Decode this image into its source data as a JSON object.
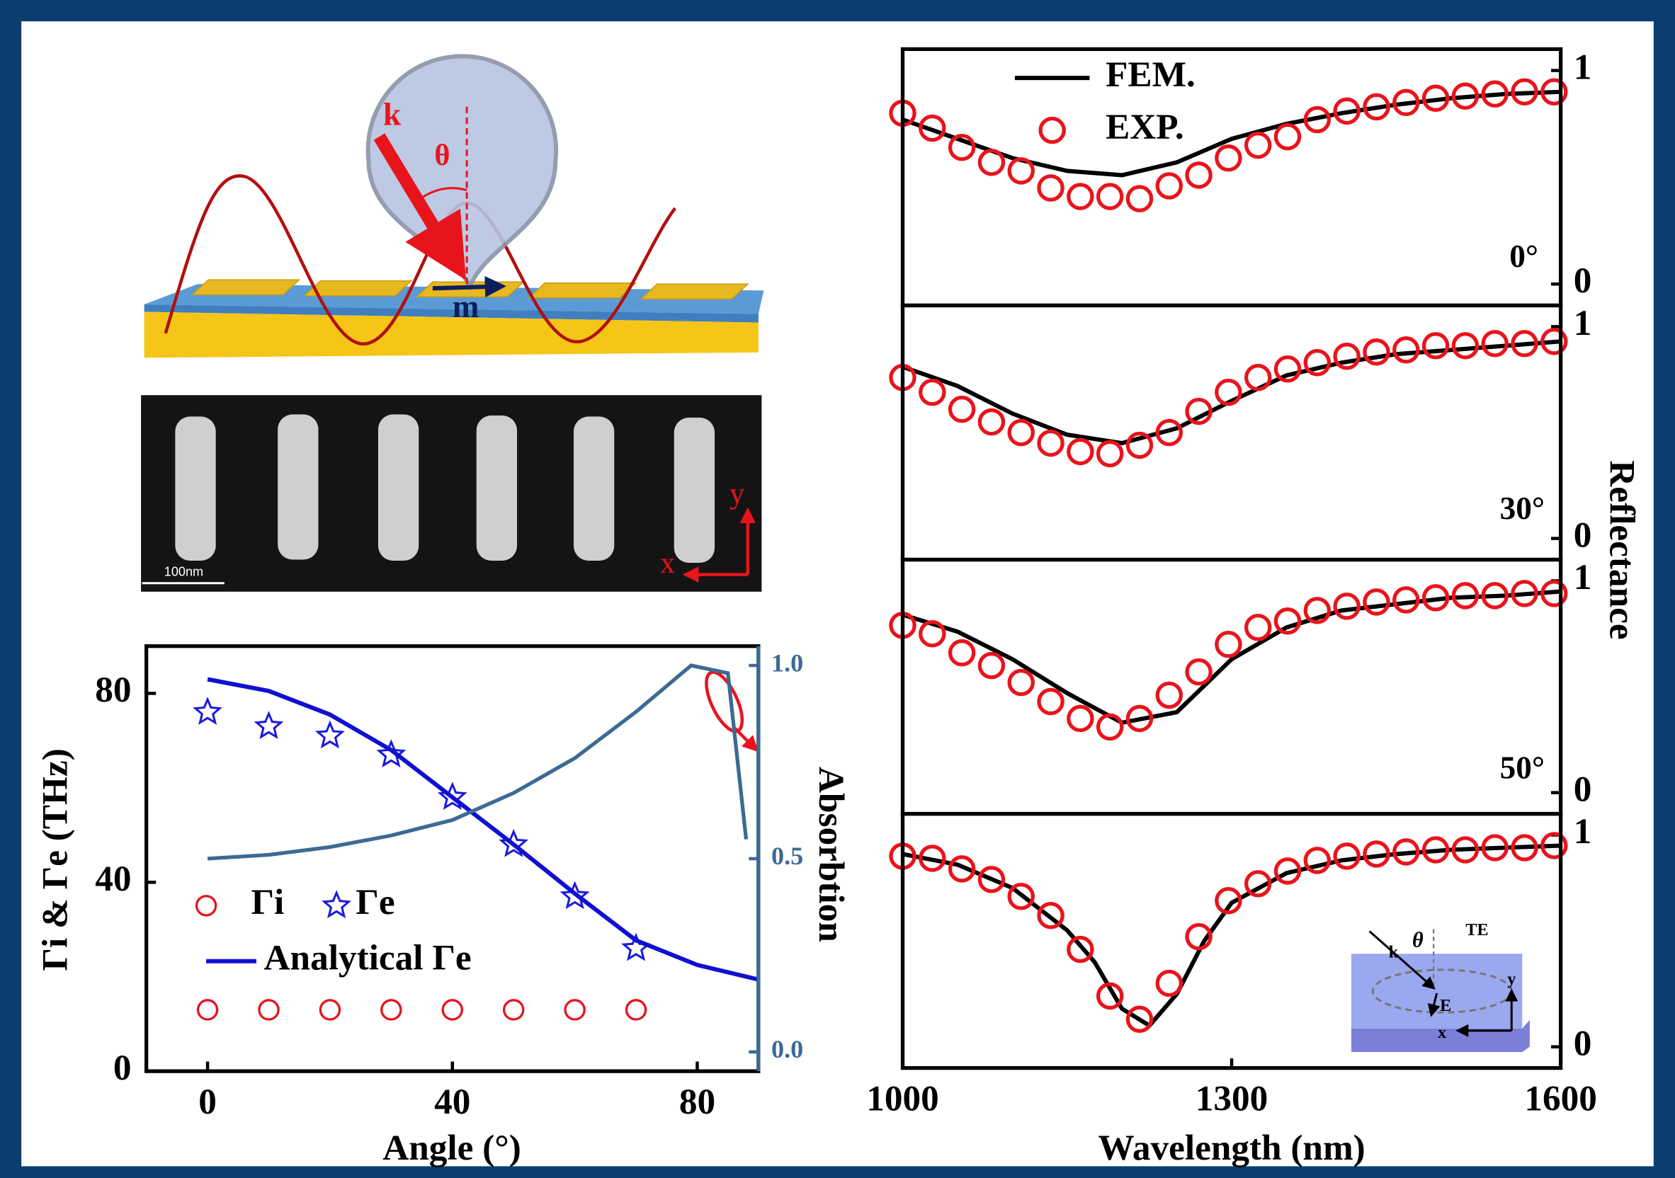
{
  "chart_data": [
    {
      "type": "scatter",
      "xlabel": "Angle (°)",
      "ylabel": "Γi & Γe (THz)",
      "y2label": "Absorbtion",
      "xlim": [
        -10,
        90
      ],
      "xticks": [
        0,
        40,
        80
      ],
      "ylim": [
        0,
        90
      ],
      "yticks": [
        0,
        40,
        80
      ],
      "y2lim": [
        -0.05,
        1.05
      ],
      "y2ticks": [
        {
          "value": 0,
          "label": "0.0"
        },
        {
          "value": 0.5,
          "label": "0.5"
        },
        {
          "value": 1,
          "label": "1.0"
        }
      ],
      "legend": true,
      "series": [
        {
          "name": "Γi",
          "type": "scatter",
          "marker": "circle",
          "color": "#e8141c",
          "x": [
            0,
            10,
            20,
            30,
            40,
            50,
            60,
            70
          ],
          "values": [
            13,
            13,
            13,
            13,
            13,
            13,
            13,
            13
          ]
        },
        {
          "name": "Γe",
          "type": "scatter",
          "marker": "star",
          "color": "#1a1adc",
          "x": [
            0,
            10,
            20,
            30,
            40,
            50,
            60,
            70
          ],
          "values": [
            76,
            73,
            71,
            67,
            58,
            48,
            37,
            26
          ]
        },
        {
          "name": "Analytical Γe",
          "type": "line",
          "color": "#1010d0",
          "x": [
            0,
            10,
            20,
            30,
            40,
            50,
            60,
            70,
            80,
            90
          ],
          "values": [
            83,
            80.5,
            75.5,
            68,
            58,
            48,
            37.6,
            27.7,
            22.5,
            19.4
          ]
        },
        {
          "type": "line",
          "axis": "y2",
          "color": "#3d6a94",
          "x": [
            0,
            10,
            20,
            30,
            40,
            50,
            60,
            70,
            79,
            85,
            88
          ],
          "values": [
            0.5,
            0.51,
            0.53,
            0.56,
            0.6,
            0.67,
            0.76,
            0.88,
            1.0,
            0.98,
            0.55
          ]
        }
      ]
    },
    {
      "type": "line",
      "annotation": "0°",
      "ylabel": "Reflectance",
      "xlim": [
        1000,
        1600
      ],
      "ylim": [
        -0.1,
        1.1
      ],
      "yticks": [
        0,
        1
      ],
      "legend": true,
      "series": [
        {
          "name": "FEM.",
          "type": "line",
          "color": "#000000",
          "x": [
            1000,
            1050,
            1100,
            1150,
            1200,
            1250,
            1300,
            1350,
            1400,
            1450,
            1500,
            1550,
            1600
          ],
          "values": [
            0.77,
            0.68,
            0.59,
            0.53,
            0.51,
            0.57,
            0.68,
            0.75,
            0.8,
            0.84,
            0.87,
            0.89,
            0.9
          ]
        },
        {
          "name": "EXP.",
          "type": "scatter",
          "marker": "circle",
          "color": "#e8141c",
          "x": [
            1000,
            1027,
            1054,
            1081,
            1108,
            1135,
            1162,
            1189,
            1216,
            1243,
            1270,
            1297,
            1324,
            1351,
            1378,
            1405,
            1432,
            1459,
            1486,
            1513,
            1540,
            1567,
            1594
          ],
          "values": [
            0.8,
            0.73,
            0.64,
            0.57,
            0.53,
            0.45,
            0.41,
            0.41,
            0.4,
            0.46,
            0.51,
            0.59,
            0.65,
            0.69,
            0.77,
            0.81,
            0.83,
            0.85,
            0.87,
            0.88,
            0.89,
            0.9,
            0.9
          ]
        }
      ]
    },
    {
      "type": "line",
      "annotation": "30°",
      "xlim": [
        1000,
        1600
      ],
      "ylim": [
        -0.1,
        1.1
      ],
      "yticks": [
        0,
        1
      ],
      "series": [
        {
          "type": "line",
          "color": "#000000",
          "x": [
            1000,
            1050,
            1100,
            1150,
            1200,
            1250,
            1300,
            1350,
            1400,
            1450,
            1500,
            1550,
            1600
          ],
          "values": [
            0.81,
            0.72,
            0.59,
            0.49,
            0.45,
            0.52,
            0.65,
            0.77,
            0.83,
            0.87,
            0.89,
            0.91,
            0.93
          ]
        },
        {
          "type": "scatter",
          "marker": "circle",
          "color": "#e8141c",
          "x": [
            1000,
            1027,
            1054,
            1081,
            1108,
            1135,
            1162,
            1189,
            1216,
            1243,
            1270,
            1297,
            1324,
            1351,
            1378,
            1405,
            1432,
            1459,
            1486,
            1513,
            1540,
            1567,
            1594
          ],
          "values": [
            0.76,
            0.69,
            0.61,
            0.55,
            0.5,
            0.45,
            0.41,
            0.4,
            0.44,
            0.5,
            0.6,
            0.69,
            0.76,
            0.8,
            0.83,
            0.86,
            0.88,
            0.89,
            0.91,
            0.91,
            0.92,
            0.92,
            0.93
          ]
        }
      ]
    },
    {
      "type": "line",
      "annotation": "50°",
      "xlim": [
        1000,
        1600
      ],
      "ylim": [
        -0.1,
        1.1
      ],
      "yticks": [
        0,
        1
      ],
      "series": [
        {
          "type": "line",
          "color": "#000000",
          "x": [
            1000,
            1050,
            1100,
            1150,
            1200,
            1250,
            1300,
            1350,
            1400,
            1450,
            1500,
            1550,
            1600
          ],
          "values": [
            0.84,
            0.76,
            0.63,
            0.47,
            0.33,
            0.38,
            0.63,
            0.78,
            0.86,
            0.89,
            0.92,
            0.93,
            0.95
          ]
        },
        {
          "type": "scatter",
          "marker": "circle",
          "color": "#e8141c",
          "x": [
            1000,
            1027,
            1054,
            1081,
            1108,
            1135,
            1162,
            1189,
            1216,
            1243,
            1270,
            1297,
            1324,
            1351,
            1378,
            1405,
            1432,
            1459,
            1486,
            1513,
            1540,
            1567,
            1594
          ],
          "values": [
            0.79,
            0.75,
            0.66,
            0.6,
            0.52,
            0.43,
            0.35,
            0.31,
            0.35,
            0.46,
            0.57,
            0.7,
            0.78,
            0.81,
            0.86,
            0.88,
            0.9,
            0.91,
            0.92,
            0.93,
            0.93,
            0.94,
            0.94
          ]
        }
      ]
    },
    {
      "type": "line",
      "xlabel": "Wavelength (nm)",
      "xlim": [
        1000,
        1600
      ],
      "xticks": [
        1000,
        1300,
        1600
      ],
      "ylim": [
        -0.1,
        1.1
      ],
      "yticks": [
        0,
        1
      ],
      "series": [
        {
          "type": "line",
          "color": "#000000",
          "x": [
            1000,
            1050,
            1100,
            1150,
            1175,
            1200,
            1225,
            1250,
            1275,
            1300,
            1350,
            1400,
            1450,
            1500,
            1550,
            1600
          ],
          "values": [
            0.91,
            0.86,
            0.75,
            0.55,
            0.4,
            0.18,
            0.1,
            0.25,
            0.5,
            0.68,
            0.82,
            0.88,
            0.91,
            0.93,
            0.94,
            0.95
          ]
        },
        {
          "type": "scatter",
          "marker": "circle",
          "color": "#e8141c",
          "x": [
            1000,
            1027,
            1054,
            1081,
            1108,
            1135,
            1162,
            1189,
            1216,
            1243,
            1270,
            1297,
            1324,
            1351,
            1378,
            1405,
            1432,
            1459,
            1486,
            1513,
            1540,
            1567,
            1594
          ],
          "values": [
            0.9,
            0.89,
            0.84,
            0.79,
            0.71,
            0.62,
            0.46,
            0.24,
            0.13,
            0.3,
            0.52,
            0.69,
            0.77,
            0.83,
            0.88,
            0.9,
            0.91,
            0.92,
            0.93,
            0.93,
            0.94,
            0.94,
            0.95
          ]
        }
      ]
    }
  ],
  "schematic": {
    "labels": [
      "k",
      "θ",
      "m"
    ]
  },
  "sem": {
    "scale_bar": "100nm",
    "axes": [
      "y",
      "x"
    ]
  },
  "inset": {
    "labels": [
      "k",
      "θ",
      "TE",
      "E",
      "y",
      "x"
    ]
  }
}
